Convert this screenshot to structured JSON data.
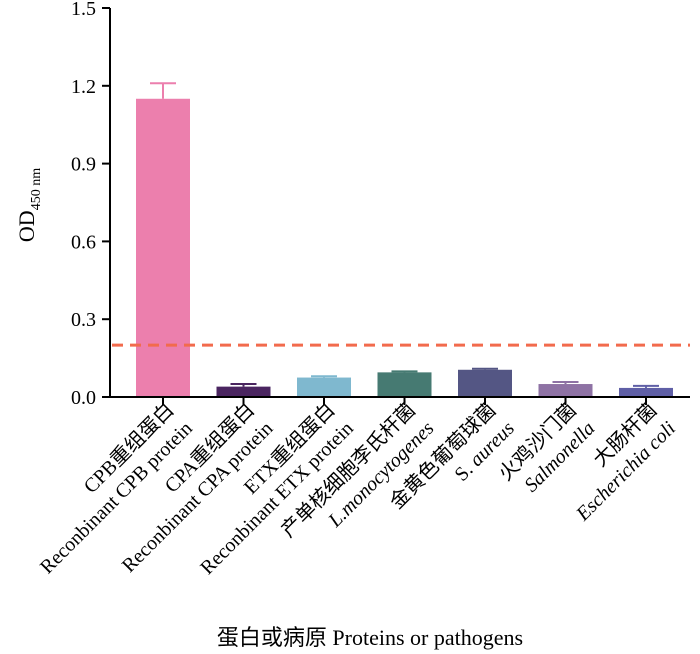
{
  "chart_data": {
    "type": "bar",
    "ylabel": "OD",
    "ylabel_subscript": "450 nm",
    "xlabel": "蛋白或病原 Proteins or pathogens",
    "ylim": [
      0,
      1.5
    ],
    "yticks": [
      "0.0",
      "0.3",
      "0.6",
      "0.9",
      "1.2",
      "1.5"
    ],
    "threshold": 0.2,
    "threshold_color": "#f26b4d",
    "categories": [
      {
        "zh": "CPB重组蛋白",
        "en": "Reconbinant CPB protein",
        "italic": false
      },
      {
        "zh": "CPA重组蛋白",
        "en": "Reconbinant CPA protein",
        "italic": false
      },
      {
        "zh": "ETX重组蛋白",
        "en": "Reconbinant ETX protein",
        "italic": false
      },
      {
        "zh": "产单核细胞李氏杆菌",
        "en": "L.monocytogenes",
        "italic": true
      },
      {
        "zh": "金黄色葡萄球菌",
        "en": "S. aureus",
        "italic": true,
        "en_prefix": "S. ",
        "en_rest": "aureus"
      },
      {
        "zh": "火鸡沙门菌",
        "en": "Salmonella",
        "italic": true
      },
      {
        "zh": "大肠杆菌",
        "en": "Escherichia coli",
        "italic": true
      }
    ],
    "values": [
      1.15,
      0.04,
      0.075,
      0.095,
      0.105,
      0.05,
      0.035
    ],
    "errors": [
      0.06,
      0.01,
      0.005,
      0.004,
      0.004,
      0.008,
      0.008
    ],
    "bar_colors": [
      "#ec7fad",
      "#4a2560",
      "#7fb8cf",
      "#467a72",
      "#545684",
      "#8e72a4",
      "#5f5fa6"
    ],
    "error_colors": [
      "#ec7fad",
      "#4a2560",
      "#7fb8cf",
      "#467a72",
      "#545684",
      "#8e72a4",
      "#5f5fa6"
    ]
  }
}
